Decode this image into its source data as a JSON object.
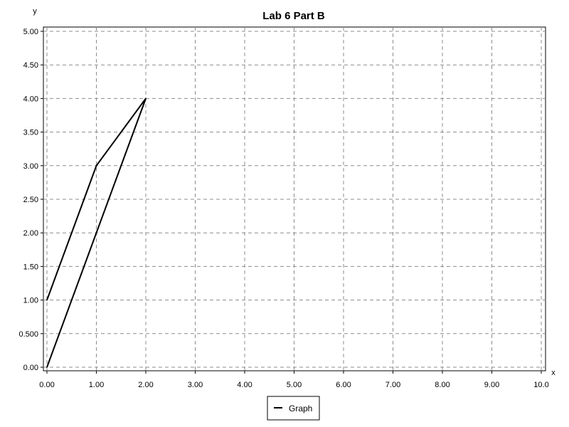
{
  "chart_data": {
    "type": "line",
    "title": "Lab 6 Part B",
    "xlabel": "x",
    "ylabel": "y",
    "xlim": [
      0,
      10
    ],
    "ylim": [
      0,
      5
    ],
    "x_ticks": [
      0,
      1,
      2,
      3,
      4,
      5,
      6,
      7,
      8,
      9,
      10
    ],
    "x_tick_labels": [
      "0.00",
      "1.00",
      "2.00",
      "3.00",
      "4.00",
      "5.00",
      "6.00",
      "7.00",
      "8.00",
      "9.00",
      "10.0"
    ],
    "y_ticks": [
      0,
      0.5,
      1,
      1.5,
      2,
      2.5,
      3,
      3.5,
      4,
      4.5,
      5
    ],
    "y_tick_labels": [
      "0.00",
      "0.500",
      "1.00",
      "1.50",
      "2.00",
      "2.50",
      "3.00",
      "3.50",
      "4.00",
      "4.50",
      "5.00"
    ],
    "grid": true,
    "legend_position": "bottom",
    "series": [
      {
        "name": "Graph",
        "color": "#000000",
        "points": [
          {
            "x": 0,
            "y": 0
          },
          {
            "x": 2,
            "y": 4
          },
          {
            "x": 1,
            "y": 3
          },
          {
            "x": 0,
            "y": 1
          }
        ]
      }
    ]
  }
}
